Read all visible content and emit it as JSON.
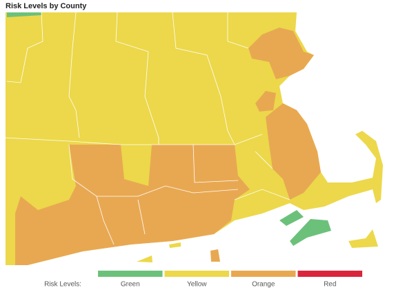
{
  "title": "Risk Levels by County",
  "legend": {
    "label": "Risk Levels:",
    "items": [
      {
        "name": "Green",
        "color": "#6cc17a"
      },
      {
        "name": "Yellow",
        "color": "#ecd84a"
      },
      {
        "name": "Orange",
        "color": "#e8a852"
      },
      {
        "name": "Red",
        "color": "#d9263d"
      }
    ]
  }
}
